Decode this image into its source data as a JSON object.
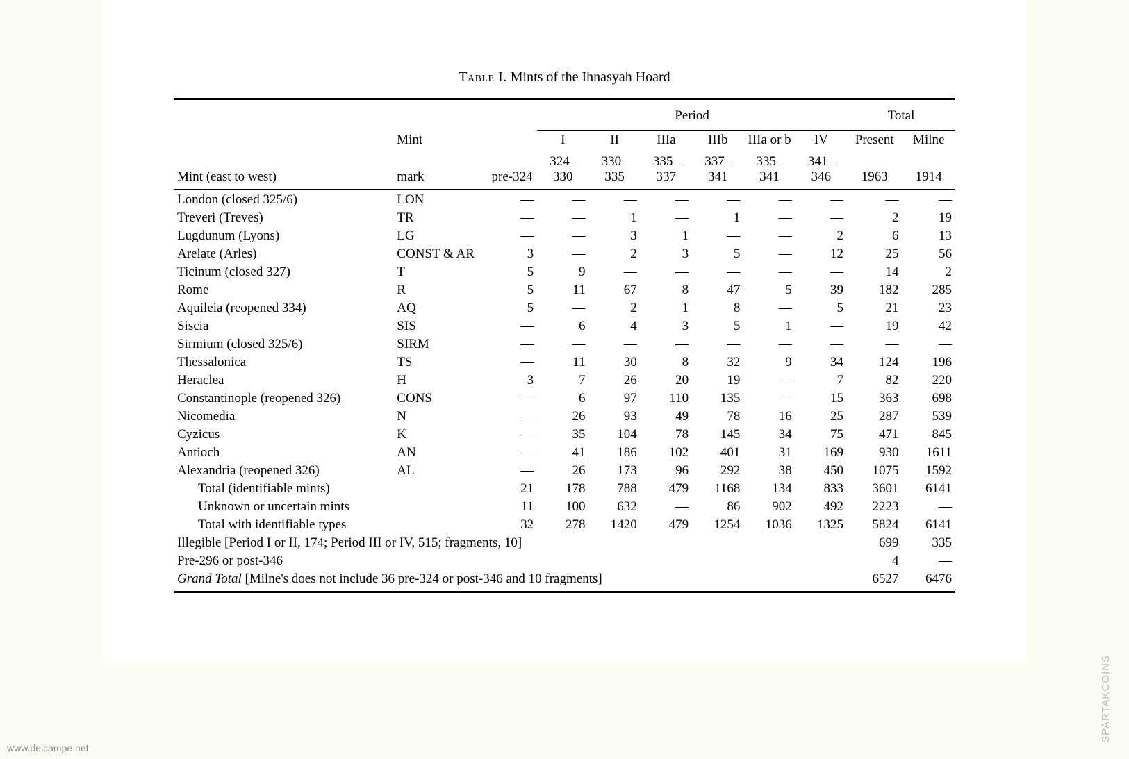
{
  "title_label": "Table I.",
  "title_text": "Mints of the Ihnasyah Hoard",
  "headers": {
    "mint": "Mint (east to west)",
    "mark": "Mint mark",
    "period_group": "Period",
    "total_group": "Total",
    "periods": [
      "pre-324",
      "I 324–330",
      "II 330–335",
      "IIIa 335–337",
      "IIIb 337–341",
      "IIIa or b 335–341",
      "IV 341–346"
    ],
    "period_top": [
      "",
      "I",
      "II",
      "IIIa",
      "IIIb",
      "IIIa or b",
      "IV"
    ],
    "period_bottom": [
      "pre-324",
      "324–330",
      "330–335",
      "335–337",
      "337–341",
      "335–341",
      "341–346"
    ],
    "totals": [
      "Present 1963",
      "Milne 1914"
    ],
    "total_top": [
      "Present",
      "Milne"
    ],
    "total_bottom": [
      "1963",
      "1914"
    ]
  },
  "rows": [
    {
      "mint": "London (closed 325/6)",
      "mark": "LON",
      "v": [
        "—",
        "—",
        "—",
        "—",
        "—",
        "—",
        "—",
        "—",
        "—"
      ]
    },
    {
      "mint": "Treveri (Treves)",
      "mark": "TR",
      "v": [
        "—",
        "—",
        "1",
        "—",
        "1",
        "—",
        "—",
        "2",
        "19"
      ]
    },
    {
      "mint": "Lugdunum (Lyons)",
      "mark": "LG",
      "v": [
        "—",
        "—",
        "3",
        "1",
        "—",
        "—",
        "2",
        "6",
        "13"
      ]
    },
    {
      "mint": "Arelate (Arles)",
      "mark": "CONST & AR",
      "v": [
        "3",
        "—",
        "2",
        "3",
        "5",
        "—",
        "12",
        "25",
        "56"
      ]
    },
    {
      "mint": "Ticinum (closed 327)",
      "mark": "T",
      "v": [
        "5",
        "9",
        "—",
        "—",
        "—",
        "—",
        "—",
        "14",
        "2"
      ]
    },
    {
      "mint": "Rome",
      "mark": "R",
      "v": [
        "5",
        "11",
        "67",
        "8",
        "47",
        "5",
        "39",
        "182",
        "285"
      ]
    },
    {
      "mint": "Aquileia (reopened 334)",
      "mark": "AQ",
      "v": [
        "5",
        "—",
        "2",
        "1",
        "8",
        "—",
        "5",
        "21",
        "23"
      ]
    },
    {
      "mint": "Siscia",
      "mark": "SIS",
      "v": [
        "—",
        "6",
        "4",
        "3",
        "5",
        "1",
        "—",
        "19",
        "42"
      ]
    },
    {
      "mint": "Sirmium (closed 325/6)",
      "mark": "SIRM",
      "v": [
        "—",
        "—",
        "—",
        "—",
        "—",
        "—",
        "—",
        "—",
        "—"
      ]
    },
    {
      "mint": "Thessalonica",
      "mark": "TS",
      "v": [
        "—",
        "11",
        "30",
        "8",
        "32",
        "9",
        "34",
        "124",
        "196"
      ]
    },
    {
      "mint": "Heraclea",
      "mark": "H",
      "v": [
        "3",
        "7",
        "26",
        "20",
        "19",
        "—",
        "7",
        "82",
        "220"
      ]
    },
    {
      "mint": "Constantinople (reopened 326)",
      "mark": "CONS",
      "v": [
        "—",
        "6",
        "97",
        "110",
        "135",
        "—",
        "15",
        "363",
        "698"
      ]
    },
    {
      "mint": "Nicomedia",
      "mark": "N",
      "v": [
        "—",
        "26",
        "93",
        "49",
        "78",
        "16",
        "25",
        "287",
        "539"
      ]
    },
    {
      "mint": "Cyzicus",
      "mark": "K",
      "v": [
        "—",
        "35",
        "104",
        "78",
        "145",
        "34",
        "75",
        "471",
        "845"
      ]
    },
    {
      "mint": "Antioch",
      "mark": "AN",
      "v": [
        "—",
        "41",
        "186",
        "102",
        "401",
        "31",
        "169",
        "930",
        "1611"
      ]
    },
    {
      "mint": "Alexandria (reopened 326)",
      "mark": "AL",
      "v": [
        "—",
        "26",
        "173",
        "96",
        "292",
        "38",
        "450",
        "1075",
        "1592"
      ]
    }
  ],
  "summary_rows": [
    {
      "label": "Total (identifiable mints)",
      "indent": true,
      "v": [
        "21",
        "178",
        "788",
        "479",
        "1168",
        "134",
        "833",
        "3601",
        "6141"
      ]
    },
    {
      "label": "Unknown or uncertain mints",
      "indent": true,
      "v": [
        "11",
        "100",
        "632",
        "—",
        "86",
        "902",
        "492",
        "2223",
        "—"
      ]
    },
    {
      "label": "Total with identifiable types",
      "indent": true,
      "v": [
        "32",
        "278",
        "1420",
        "479",
        "1254",
        "1036",
        "1325",
        "5824",
        "6141"
      ]
    }
  ],
  "spanning_rows": [
    {
      "label": "Illegible [Period I or II, 174; Period III or IV, 515; fragments, 10]",
      "v": [
        "699",
        "335"
      ]
    },
    {
      "label": "Pre-296 or post-346",
      "v": [
        "4",
        "—"
      ]
    }
  ],
  "grand_total": {
    "label_italic": "Grand Total",
    "label_rest": " [Milne's does not include 36 pre-324 or post-346 and 10 fragments]",
    "v": [
      "6527",
      "6476"
    ]
  },
  "watermark_left": "www.delcampe.net",
  "watermark_right": "SPARTAKCOINS",
  "colors": {
    "page_bg": "#fdfdf3",
    "paper_bg": "#ffffff",
    "text": "#000000",
    "rule": "#000000",
    "watermark": "#888888"
  },
  "fonts": {
    "body_family": "Georgia, Times New Roman, serif",
    "body_size_pt": 14,
    "title_size_pt": 15
  }
}
